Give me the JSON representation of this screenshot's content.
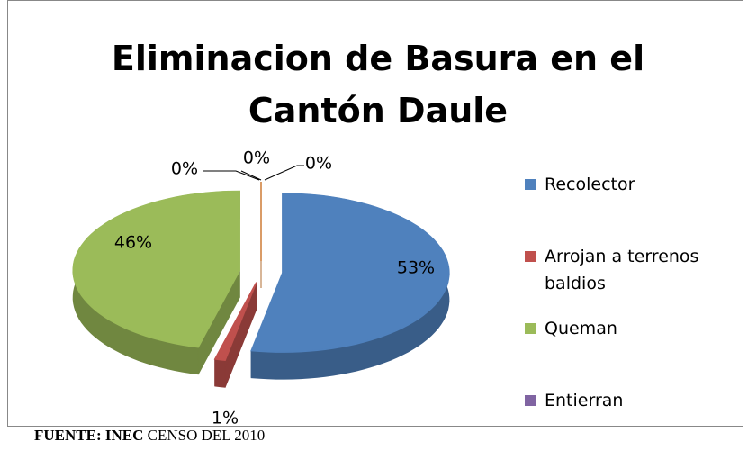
{
  "chart_data": {
    "type": "pie3d",
    "title": "Eliminacion de Basura en el Cantón Daule",
    "categories": [
      "Recolector",
      "Arrojan a terrenos baldios",
      "Queman",
      "Entierran",
      null,
      null
    ],
    "values": [
      53,
      1,
      46,
      0,
      0,
      0
    ],
    "value_labels": [
      "53%",
      "1%",
      "46%",
      "0%",
      "0%",
      "0%"
    ],
    "colors": [
      "#4f81bd",
      "#c0504d",
      "#9bbb59",
      "#8064a2",
      "#4bacc6",
      "#f79646"
    ],
    "legend": "right"
  },
  "source": {
    "label": "FUENTE: INEC",
    "text": "CENSO DEL 2010"
  }
}
